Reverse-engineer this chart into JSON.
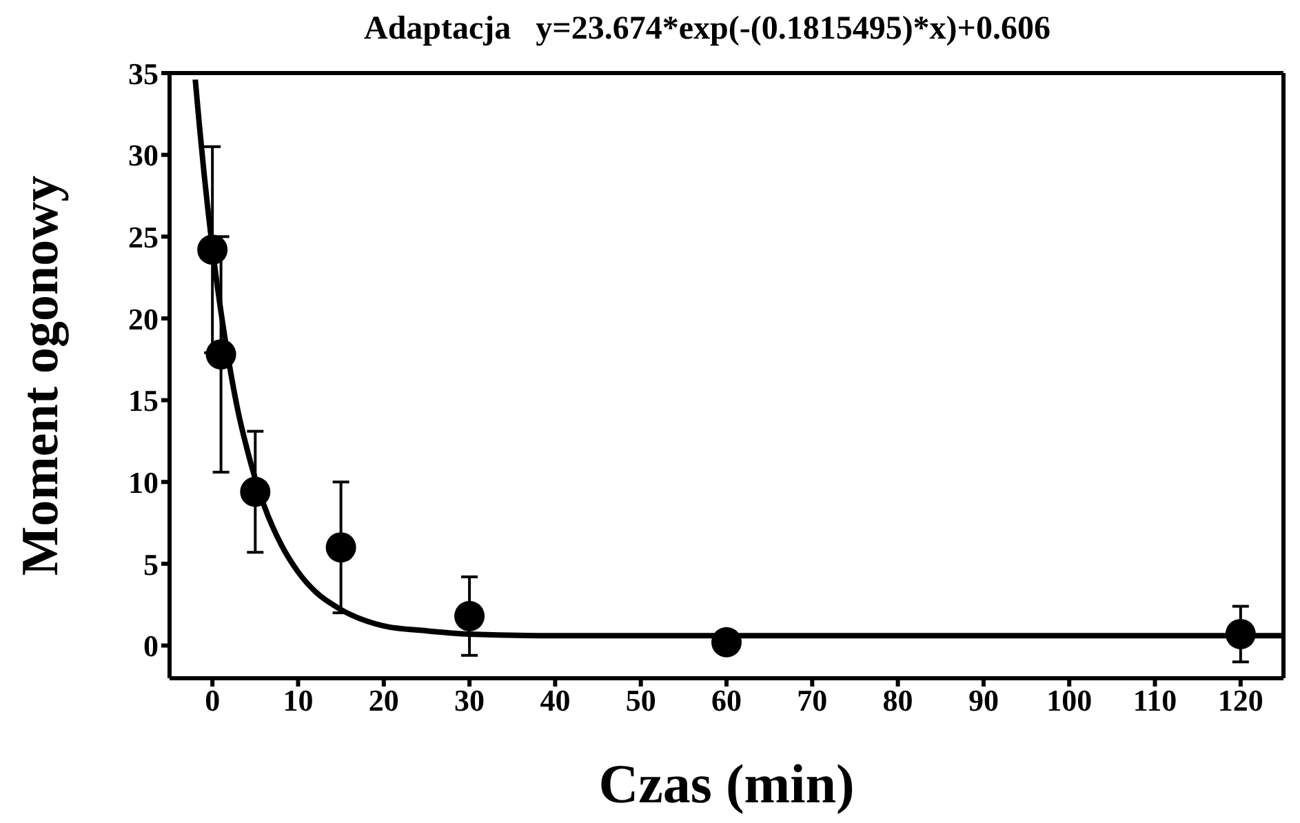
{
  "chart_data": {
    "type": "scatter",
    "title": "Adaptacja   y=23.674*exp(-(0.1815495)*x)+0.606",
    "xlabel": "Czas (min)",
    "ylabel": "Moment ogonowy",
    "xlim": [
      -5,
      125
    ],
    "xticks": [
      0,
      10,
      20,
      30,
      40,
      50,
      60,
      70,
      80,
      90,
      100,
      110,
      120
    ],
    "ylim": [
      -2,
      35
    ],
    "yticks": [
      0,
      5,
      10,
      15,
      20,
      25,
      30,
      35
    ],
    "legend": false,
    "marker": "circle",
    "series": [
      {
        "color": "#000000",
        "x": [
          0,
          1,
          5,
          15,
          30,
          60,
          120
        ],
        "values": [
          24.2,
          17.8,
          9.4,
          6.0,
          1.8,
          0.2,
          0.7
        ],
        "errors": [
          6.3,
          7.2,
          3.7,
          4.0,
          2.4,
          0.5,
          1.7
        ]
      },
      {
        "type": "line",
        "color": "#000000",
        "marker": "none",
        "line_style": "solid",
        "x": [
          -2,
          -1.5,
          -1,
          0,
          1,
          2,
          3,
          4,
          5,
          6,
          8,
          10,
          12,
          15,
          20,
          25,
          30,
          40,
          60,
          125
        ],
        "values": [
          34.6,
          31.7,
          29.0,
          24.3,
          20.4,
          17.1,
          14.3,
          12.1,
          10.2,
          8.6,
          6.2,
          4.5,
          3.3,
          2.2,
          1.2,
          0.9,
          0.7,
          0.6,
          0.6,
          0.6
        ]
      }
    ]
  }
}
